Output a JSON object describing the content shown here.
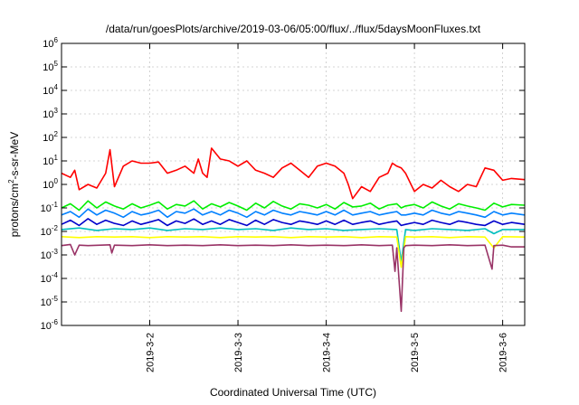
{
  "chart_data": {
    "type": "line",
    "title": "/data/run/goesPlots/archive/2019-03-06/05:00/flux/../flux/5daysMoonFluxes.txt",
    "xlabel": "Coordinated Universal Time (UTC)",
    "ylabel": "protons/cm²-s-sr-MeV",
    "ylabel_parts": {
      "base": "protons/cm",
      "sup": "2",
      "rest": "-s-sr-MeV"
    },
    "yscale": "log",
    "ylim": [
      1e-06,
      1000000.0
    ],
    "xlim": [
      1.0,
      6.25
    ],
    "y_ticks": [
      {
        "value": 1e-06,
        "base": "10",
        "exp": "-6"
      },
      {
        "value": 1e-05,
        "base": "10",
        "exp": "-5"
      },
      {
        "value": 0.0001,
        "base": "10",
        "exp": "-4"
      },
      {
        "value": 0.001,
        "base": "10",
        "exp": "-3"
      },
      {
        "value": 0.01,
        "base": "10",
        "exp": "-2"
      },
      {
        "value": 0.1,
        "base": "10",
        "exp": "-1"
      },
      {
        "value": 1,
        "base": "10",
        "exp": "0"
      },
      {
        "value": 10.0,
        "base": "10",
        "exp": "1"
      },
      {
        "value": 100.0,
        "base": "10",
        "exp": "2"
      },
      {
        "value": 1000.0,
        "base": "10",
        "exp": "3"
      },
      {
        "value": 10000.0,
        "base": "10",
        "exp": "4"
      },
      {
        "value": 100000.0,
        "base": "10",
        "exp": "5"
      },
      {
        "value": 1000000.0,
        "base": "10",
        "exp": "6"
      }
    ],
    "x_ticks": [
      {
        "value": 2,
        "label": "2019-3-2"
      },
      {
        "value": 3,
        "label": "2019-3-3"
      },
      {
        "value": 4,
        "label": "2019-3-4"
      },
      {
        "value": 5,
        "label": "2019-3-5"
      },
      {
        "value": 6,
        "label": "2019-3-6"
      }
    ],
    "grid": true,
    "legend": "none",
    "series": [
      {
        "color": "#ff0000",
        "x": [
          1.0,
          1.1,
          1.15,
          1.2,
          1.3,
          1.4,
          1.5,
          1.55,
          1.6,
          1.7,
          1.8,
          1.9,
          2.0,
          2.1,
          2.2,
          2.3,
          2.4,
          2.5,
          2.55,
          2.6,
          2.65,
          2.7,
          2.8,
          2.9,
          3.0,
          3.1,
          3.2,
          3.3,
          3.4,
          3.5,
          3.6,
          3.7,
          3.8,
          3.9,
          4.0,
          4.1,
          4.2,
          4.25,
          4.3,
          4.4,
          4.5,
          4.6,
          4.7,
          4.75,
          4.8,
          4.85,
          4.9,
          5.0,
          5.1,
          5.2,
          5.3,
          5.4,
          5.5,
          5.6,
          5.7,
          5.8,
          5.9,
          6.0,
          6.1,
          6.25
        ],
        "y": [
          3,
          2,
          4,
          0.6,
          1,
          0.7,
          3,
          30,
          0.8,
          6,
          10,
          8,
          8,
          9,
          3,
          4,
          6,
          3,
          12,
          3,
          2,
          35,
          12,
          10,
          6,
          10,
          4,
          3,
          2,
          5,
          8,
          4,
          2,
          6,
          8,
          6,
          3,
          1,
          0.25,
          0.8,
          0.5,
          2,
          3,
          8,
          6,
          5,
          3,
          0.5,
          1,
          0.7,
          1.5,
          0.8,
          0.5,
          1,
          0.8,
          5,
          4,
          1.5,
          1.8,
          1.6
        ]
      },
      {
        "color": "#00ee00",
        "x": [
          1.0,
          1.1,
          1.2,
          1.3,
          1.4,
          1.5,
          1.6,
          1.7,
          1.8,
          1.9,
          2.0,
          2.1,
          2.2,
          2.3,
          2.4,
          2.5,
          2.6,
          2.7,
          2.8,
          2.9,
          3.0,
          3.1,
          3.2,
          3.3,
          3.4,
          3.5,
          3.6,
          3.7,
          3.8,
          3.9,
          4.0,
          4.1,
          4.2,
          4.3,
          4.4,
          4.5,
          4.6,
          4.7,
          4.8,
          4.85,
          4.9,
          5.0,
          5.1,
          5.2,
          5.3,
          5.4,
          5.5,
          5.6,
          5.7,
          5.8,
          5.9,
          6.0,
          6.1,
          6.25
        ],
        "y": [
          0.1,
          0.15,
          0.08,
          0.2,
          0.1,
          0.18,
          0.12,
          0.09,
          0.15,
          0.1,
          0.13,
          0.18,
          0.09,
          0.14,
          0.12,
          0.2,
          0.09,
          0.15,
          0.11,
          0.17,
          0.12,
          0.08,
          0.16,
          0.1,
          0.19,
          0.12,
          0.09,
          0.15,
          0.13,
          0.1,
          0.14,
          0.09,
          0.17,
          0.11,
          0.12,
          0.16,
          0.09,
          0.13,
          0.15,
          0.1,
          0.12,
          0.14,
          0.1,
          0.18,
          0.12,
          0.09,
          0.15,
          0.12,
          0.1,
          0.08,
          0.16,
          0.11,
          0.14,
          0.13
        ]
      },
      {
        "color": "#0080ff",
        "x": [
          1.0,
          1.1,
          1.2,
          1.3,
          1.4,
          1.5,
          1.6,
          1.7,
          1.8,
          1.9,
          2.0,
          2.1,
          2.2,
          2.3,
          2.4,
          2.5,
          2.6,
          2.7,
          2.8,
          2.9,
          3.0,
          3.1,
          3.2,
          3.3,
          3.4,
          3.5,
          3.6,
          3.7,
          3.8,
          3.9,
          4.0,
          4.1,
          4.2,
          4.3,
          4.4,
          4.5,
          4.6,
          4.7,
          4.8,
          4.85,
          4.9,
          5.0,
          5.1,
          5.2,
          5.3,
          5.4,
          5.5,
          5.6,
          5.7,
          5.8,
          5.9,
          6.0,
          6.1,
          6.25
        ],
        "y": [
          0.05,
          0.07,
          0.04,
          0.09,
          0.05,
          0.08,
          0.06,
          0.04,
          0.07,
          0.05,
          0.06,
          0.08,
          0.04,
          0.07,
          0.06,
          0.09,
          0.05,
          0.07,
          0.05,
          0.08,
          0.06,
          0.04,
          0.07,
          0.05,
          0.08,
          0.06,
          0.05,
          0.07,
          0.06,
          0.05,
          0.07,
          0.05,
          0.08,
          0.05,
          0.06,
          0.07,
          0.05,
          0.06,
          0.07,
          0.05,
          0.05,
          0.06,
          0.05,
          0.08,
          0.06,
          0.05,
          0.07,
          0.06,
          0.05,
          0.04,
          0.07,
          0.05,
          0.06,
          0.05
        ]
      },
      {
        "color": "#0000cc",
        "x": [
          1.0,
          1.1,
          1.2,
          1.3,
          1.4,
          1.5,
          1.6,
          1.7,
          1.8,
          1.9,
          2.0,
          2.1,
          2.2,
          2.3,
          2.4,
          2.5,
          2.6,
          2.7,
          2.8,
          2.9,
          3.0,
          3.1,
          3.2,
          3.3,
          3.4,
          3.5,
          3.6,
          3.7,
          3.8,
          3.9,
          4.0,
          4.1,
          4.2,
          4.3,
          4.4,
          4.5,
          4.6,
          4.7,
          4.8,
          4.85,
          4.9,
          5.0,
          5.1,
          5.2,
          5.3,
          5.4,
          5.5,
          5.6,
          5.7,
          5.8,
          5.9,
          6.0,
          6.1,
          6.25
        ],
        "y": [
          0.02,
          0.03,
          0.018,
          0.035,
          0.02,
          0.03,
          0.022,
          0.018,
          0.028,
          0.02,
          0.025,
          0.032,
          0.018,
          0.028,
          0.022,
          0.034,
          0.02,
          0.028,
          0.02,
          0.032,
          0.024,
          0.018,
          0.03,
          0.02,
          0.032,
          0.024,
          0.02,
          0.028,
          0.024,
          0.02,
          0.028,
          0.02,
          0.03,
          0.02,
          0.024,
          0.028,
          0.02,
          0.024,
          0.028,
          0.018,
          0.02,
          0.024,
          0.02,
          0.03,
          0.024,
          0.02,
          0.028,
          0.024,
          0.02,
          0.018,
          0.028,
          0.02,
          0.024,
          0.02
        ]
      },
      {
        "color": "#00bfbf",
        "x": [
          1.0,
          1.2,
          1.4,
          1.6,
          1.8,
          2.0,
          2.2,
          2.4,
          2.6,
          2.8,
          3.0,
          3.2,
          3.4,
          3.6,
          3.8,
          4.0,
          4.2,
          4.4,
          4.6,
          4.8,
          4.85,
          4.9,
          5.0,
          5.2,
          5.4,
          5.6,
          5.8,
          5.9,
          6.0,
          6.25
        ],
        "y": [
          0.012,
          0.014,
          0.011,
          0.013,
          0.012,
          0.014,
          0.011,
          0.013,
          0.012,
          0.014,
          0.012,
          0.013,
          0.011,
          0.014,
          0.012,
          0.013,
          0.011,
          0.012,
          0.013,
          0.012,
          0.0005,
          0.012,
          0.011,
          0.013,
          0.012,
          0.011,
          0.013,
          0.008,
          0.012,
          0.012
        ]
      },
      {
        "color": "#ffff00",
        "x": [
          1.0,
          1.2,
          1.4,
          1.6,
          1.8,
          2.0,
          2.2,
          2.4,
          2.6,
          2.8,
          3.0,
          3.2,
          3.4,
          3.6,
          3.8,
          4.0,
          4.2,
          4.4,
          4.6,
          4.8,
          4.85,
          4.9,
          5.0,
          5.2,
          5.4,
          5.6,
          5.8,
          5.9,
          6.0,
          6.25
        ],
        "y": [
          0.006,
          0.0055,
          0.006,
          0.0058,
          0.006,
          0.0055,
          0.006,
          0.0058,
          0.006,
          0.0055,
          0.006,
          0.0058,
          0.006,
          0.0055,
          0.006,
          0.0058,
          0.006,
          0.0055,
          0.006,
          0.0058,
          0.0003,
          0.006,
          0.0058,
          0.006,
          0.0055,
          0.006,
          0.0058,
          0.002,
          0.006,
          0.0058
        ]
      },
      {
        "color": "#993366",
        "x": [
          1.0,
          1.1,
          1.15,
          1.2,
          1.3,
          1.55,
          1.57,
          1.6,
          1.8,
          2.0,
          2.2,
          2.4,
          2.6,
          2.8,
          3.0,
          3.2,
          3.4,
          3.6,
          3.8,
          4.0,
          4.2,
          4.4,
          4.6,
          4.75,
          4.78,
          4.8,
          4.85,
          4.88,
          4.9,
          5.0,
          5.2,
          5.4,
          5.6,
          5.8,
          5.88,
          5.9,
          6.0,
          6.1,
          6.25
        ],
        "y": [
          0.0025,
          0.0028,
          0.001,
          0.0026,
          0.0025,
          0.0027,
          0.0012,
          0.0026,
          0.0025,
          0.0027,
          0.0025,
          0.0026,
          0.0025,
          0.0027,
          0.0025,
          0.0026,
          0.0025,
          0.0027,
          0.0025,
          0.0026,
          0.0025,
          0.0027,
          0.0025,
          0.0026,
          0.0002,
          0.002,
          4e-06,
          0.002,
          0.0025,
          0.0026,
          0.0025,
          0.0027,
          0.0025,
          0.0026,
          0.00025,
          0.0025,
          0.0026,
          0.0022,
          0.0022
        ]
      }
    ]
  }
}
